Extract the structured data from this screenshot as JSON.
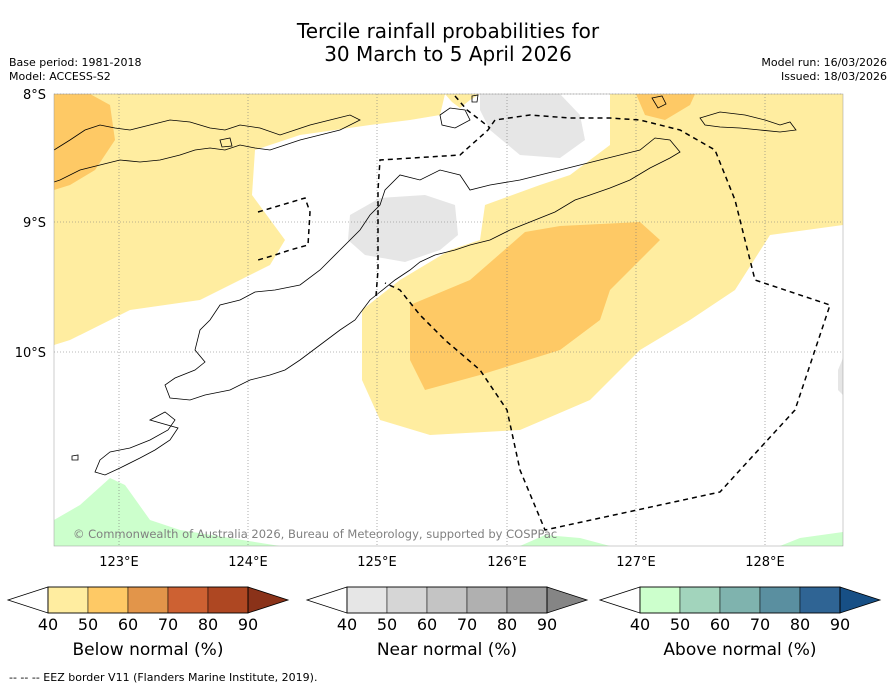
{
  "header": {
    "title_line1": "Tercile rainfall probabilities for",
    "title_line2": "30 March to 5 April 2026",
    "base_period": "Base period: 1981-2018",
    "model": "Model: ACCESS-S2",
    "model_run": "Model run: 16/03/2026",
    "issued": "Issued: 18/03/2026"
  },
  "map": {
    "lat_labels": [
      "8°S",
      "9°S",
      "10°S"
    ],
    "lon_labels": [
      "123°E",
      "124°E",
      "125°E",
      "126°E",
      "127°E",
      "128°E"
    ],
    "attribution": "© Commonwealth of Australia 2026, Bureau of Meteorology, supported by COSPPac"
  },
  "colorbars": {
    "ticks": [
      "40",
      "50",
      "60",
      "70",
      "80",
      "90"
    ],
    "below": {
      "label": "Below normal (%)",
      "colors": [
        "#ffeda0",
        "#fec965",
        "#e2954a",
        "#cd6132",
        "#ae4722",
        "#8a3219"
      ]
    },
    "near": {
      "label": "Near normal (%)",
      "colors": [
        "#e6e6e6",
        "#d6d6d6",
        "#c4c4c4",
        "#b0b0b0",
        "#9e9e9e",
        "#858585"
      ]
    },
    "above": {
      "label": "Above normal (%)",
      "colors": [
        "#ccffcc",
        "#a2d4bc",
        "#7fb3ae",
        "#5a8fa0",
        "#2f6494",
        "#174f85"
      ]
    }
  },
  "footnote": "--  --  -- EEZ border V11 (Flanders Marine Institute, 2019)."
}
